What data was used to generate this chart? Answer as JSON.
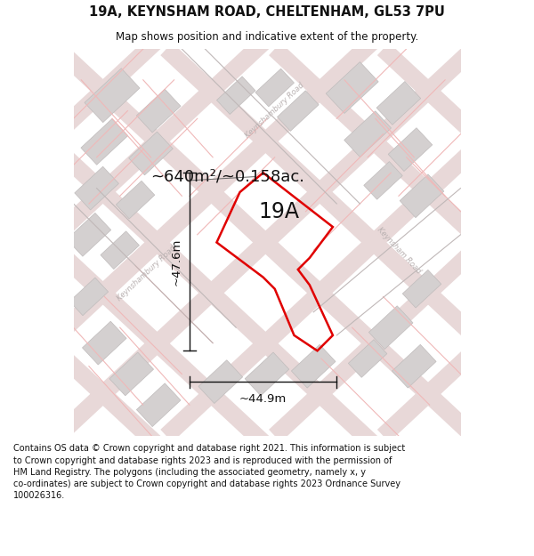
{
  "title_line1": "19A, KEYNSHAM ROAD, CHELTENHAM, GL53 7PU",
  "title_line2": "Map shows position and indicative extent of the property.",
  "area_label": "~640m²/~0.158ac.",
  "label_19A": "19A",
  "dim_height": "~47.6m",
  "dim_width": "~44.9m",
  "footer_text": "Contains OS data © Crown copyright and database right 2021. This information is subject to Crown copyright and database rights 2023 and is reproduced with the permission of HM Land Registry. The polygons (including the associated geometry, namely x, y co-ordinates) are subject to Crown copyright and database rights 2023 Ordnance Survey 100026316.",
  "bg_color": "#ffffff",
  "map_bg": "#f5eeee",
  "road_color_light": "#f0b8b8",
  "building_color": "#d4d0d0",
  "building_edge": "#c0bcbc",
  "plot_color": "#e00000",
  "dim_line_color": "#111111",
  "street_label_color": "#b8b0b0",
  "title_fontsize": 10.5,
  "subtitle_fontsize": 8.5,
  "footer_fontsize": 7.0,
  "area_fontsize": 13,
  "label_fontsize": 17,
  "dim_fontsize": 9.5,
  "ang": 43
}
